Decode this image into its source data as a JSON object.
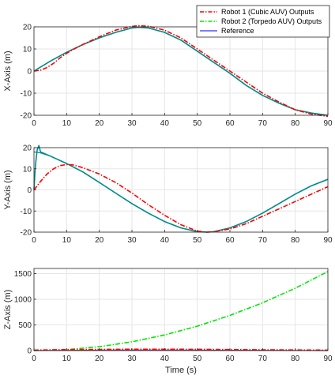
{
  "chart_data": [
    {
      "type": "line",
      "ylabel": "X-Axis (m)",
      "xlabel": "",
      "xlim": [
        0,
        90
      ],
      "ylim": [
        -20,
        20
      ],
      "xticks": [
        0,
        10,
        20,
        30,
        40,
        50,
        60,
        70,
        80,
        90
      ],
      "yticks": [
        -20,
        -10,
        0,
        10,
        20
      ],
      "grid": true,
      "series": [
        {
          "key": "robot1",
          "x": [
            0,
            2,
            4,
            6,
            8,
            10,
            12,
            15,
            20,
            25,
            30,
            32,
            35,
            40,
            45,
            50,
            55,
            60,
            65,
            70,
            75,
            80,
            85,
            90
          ],
          "y": [
            0,
            0.4,
            1.6,
            3.5,
            6,
            8,
            9.8,
            12,
            15.5,
            18.5,
            20.2,
            20.5,
            20.3,
            18.5,
            15,
            10,
            5,
            0,
            -5,
            -10,
            -14,
            -17.5,
            -19.5,
            -20.5
          ]
        },
        {
          "key": "robot2",
          "x": [
            0,
            5,
            10,
            15,
            20,
            25,
            30,
            32,
            35,
            40,
            45,
            50,
            55,
            60,
            65,
            70,
            75,
            80,
            85,
            90
          ],
          "y": [
            0,
            4.5,
            8.5,
            12,
            15,
            17.5,
            19.5,
            19.8,
            19.5,
            17.5,
            14,
            9,
            4,
            -1,
            -6.5,
            -11,
            -14.5,
            -17.5,
            -19,
            -20
          ]
        },
        {
          "key": "reference",
          "x": [
            0,
            5,
            10,
            15,
            20,
            25,
            30,
            32,
            35,
            40,
            45,
            50,
            55,
            60,
            65,
            70,
            75,
            80,
            85,
            90
          ],
          "y": [
            0,
            4.5,
            8.5,
            12,
            15,
            17.5,
            19.5,
            19.8,
            19.5,
            17.5,
            14,
            9,
            4,
            -1,
            -6.5,
            -11,
            -14.5,
            -17.5,
            -19,
            -20
          ]
        }
      ]
    },
    {
      "type": "line",
      "ylabel": "Y-Axis (m)",
      "xlabel": "",
      "xlim": [
        0,
        90
      ],
      "ylim": [
        -20,
        20
      ],
      "xticks": [
        0,
        10,
        20,
        30,
        40,
        50,
        60,
        70,
        80,
        90
      ],
      "yticks": [
        -20,
        -10,
        0,
        10,
        20
      ],
      "grid": true,
      "series": [
        {
          "key": "robot1",
          "x": [
            0,
            2,
            4,
            6,
            8,
            10,
            12,
            15,
            20,
            25,
            30,
            35,
            40,
            45,
            50,
            53,
            55,
            60,
            65,
            70,
            75,
            80,
            85,
            90
          ],
          "y": [
            0,
            4,
            7.5,
            10,
            11.5,
            12,
            11.8,
            10.5,
            7.5,
            3.5,
            -1.5,
            -7,
            -12,
            -16.5,
            -19.5,
            -20,
            -19.8,
            -18.5,
            -16,
            -12.5,
            -9,
            -5.5,
            -2,
            1.5
          ]
        },
        {
          "key": "robot2",
          "x": [
            0,
            0.3,
            0.6,
            1,
            1.5,
            2,
            5,
            10,
            15,
            20,
            25,
            30,
            35,
            40,
            45,
            50,
            53,
            55,
            60,
            65,
            70,
            75,
            80,
            85,
            90
          ],
          "y": [
            0,
            8,
            14,
            19,
            21,
            18,
            16,
            12.5,
            8.5,
            3.5,
            -1.5,
            -6.5,
            -11,
            -15,
            -18,
            -19.8,
            -20,
            -19.8,
            -18,
            -15,
            -11,
            -6.5,
            -2,
            2,
            5
          ]
        },
        {
          "key": "reference",
          "x": [
            0,
            2,
            5,
            10,
            15,
            20,
            25,
            30,
            35,
            40,
            45,
            50,
            53,
            55,
            60,
            65,
            70,
            75,
            80,
            85,
            90
          ],
          "y": [
            18,
            17.5,
            16,
            12.5,
            8.5,
            3.5,
            -1.5,
            -6.5,
            -11,
            -15,
            -18,
            -19.8,
            -20,
            -19.8,
            -18,
            -15,
            -11,
            -6.5,
            -2,
            2,
            5
          ]
        }
      ]
    },
    {
      "type": "line",
      "ylabel": "Z-Axis (m)",
      "xlabel": "Time (s)",
      "xlim": [
        0,
        90
      ],
      "ylim": [
        0,
        1600
      ],
      "xticks": [
        0,
        10,
        20,
        30,
        40,
        50,
        60,
        70,
        80,
        90
      ],
      "yticks": [
        0,
        500,
        1000,
        1500
      ],
      "grid": true,
      "series": [
        {
          "key": "robot1",
          "x": [
            0,
            10,
            20,
            30,
            40,
            50,
            60,
            70,
            80,
            90
          ],
          "y": [
            10,
            18,
            23,
            26,
            26,
            24,
            20,
            16,
            12,
            10
          ]
        },
        {
          "key": "robot2",
          "x": [
            0,
            10,
            20,
            30,
            40,
            50,
            60,
            70,
            80,
            90
          ],
          "y": [
            0,
            19,
            76,
            171,
            304,
            475,
            684,
            931,
            1216,
            1540
          ]
        },
        {
          "key": "reference",
          "x": [
            0,
            10,
            20,
            30,
            40,
            50,
            60,
            70,
            80,
            90
          ],
          "y": [
            0,
            4,
            8,
            10,
            10,
            8,
            6,
            4,
            2,
            0
          ]
        }
      ]
    }
  ],
  "legend": {
    "placement": "top-right",
    "entries": [
      {
        "key": "robot1",
        "label": "Robot 1 (Cubic AUV) Outputs",
        "color": "#ff0000",
        "dash": "dashdot"
      },
      {
        "key": "robot2",
        "label": "Robot 2 (Torpedo AUV) Outputs",
        "color": "#00e600",
        "dash": "dashdot"
      },
      {
        "key": "reference",
        "label": "Reference",
        "color": "#5555ff",
        "dash": "solid"
      }
    ]
  },
  "colors": {
    "robot1": "#ff0000",
    "robot2_top": "#008b8b",
    "robot2_bottom": "#00e600",
    "reference_top": "#008b8b",
    "reference_bottom": "#7040a0",
    "grid": "#e6e6e6",
    "axis": "#262626"
  }
}
